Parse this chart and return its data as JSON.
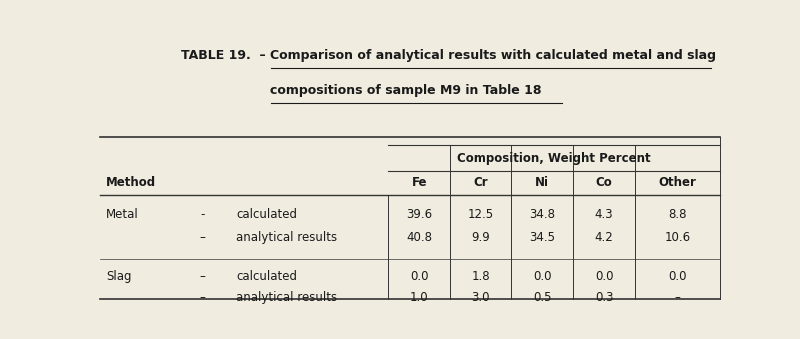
{
  "title_prefix": "TABLE 19.  –",
  "title_line1": "Comparison of analytical results with calculated metal and slag",
  "title_line2": "compositions of sample M9 in Table 18",
  "col_header_group": "Composition, Weight Percent",
  "col_headers": [
    "Fe",
    "Cr",
    "Ni",
    "Co",
    "Other"
  ],
  "method_label": "Method",
  "rows": [
    {
      "group": "Metal",
      "dash": "-",
      "label": "calculated",
      "values": [
        "39.6",
        "12.5",
        "34.8",
        "4.3",
        "8.8"
      ]
    },
    {
      "group": "",
      "dash": "–",
      "label": "analytical results",
      "values": [
        "40.8",
        "9.9",
        "34.5",
        "4.2",
        "10.6"
      ]
    },
    {
      "group": "Slag",
      "dash": "–",
      "label": "calculated",
      "values": [
        "0.0",
        "1.8",
        "0.0",
        "0.0",
        "0.0"
      ]
    },
    {
      "group": "",
      "dash": "–",
      "label": "analytical results",
      "values": [
        "1.0",
        "3.0",
        "0.5",
        "0.3",
        "–"
      ]
    }
  ],
  "bg_color": "#f0ece0",
  "text_color": "#1a1a1a",
  "line_color": "#333333"
}
